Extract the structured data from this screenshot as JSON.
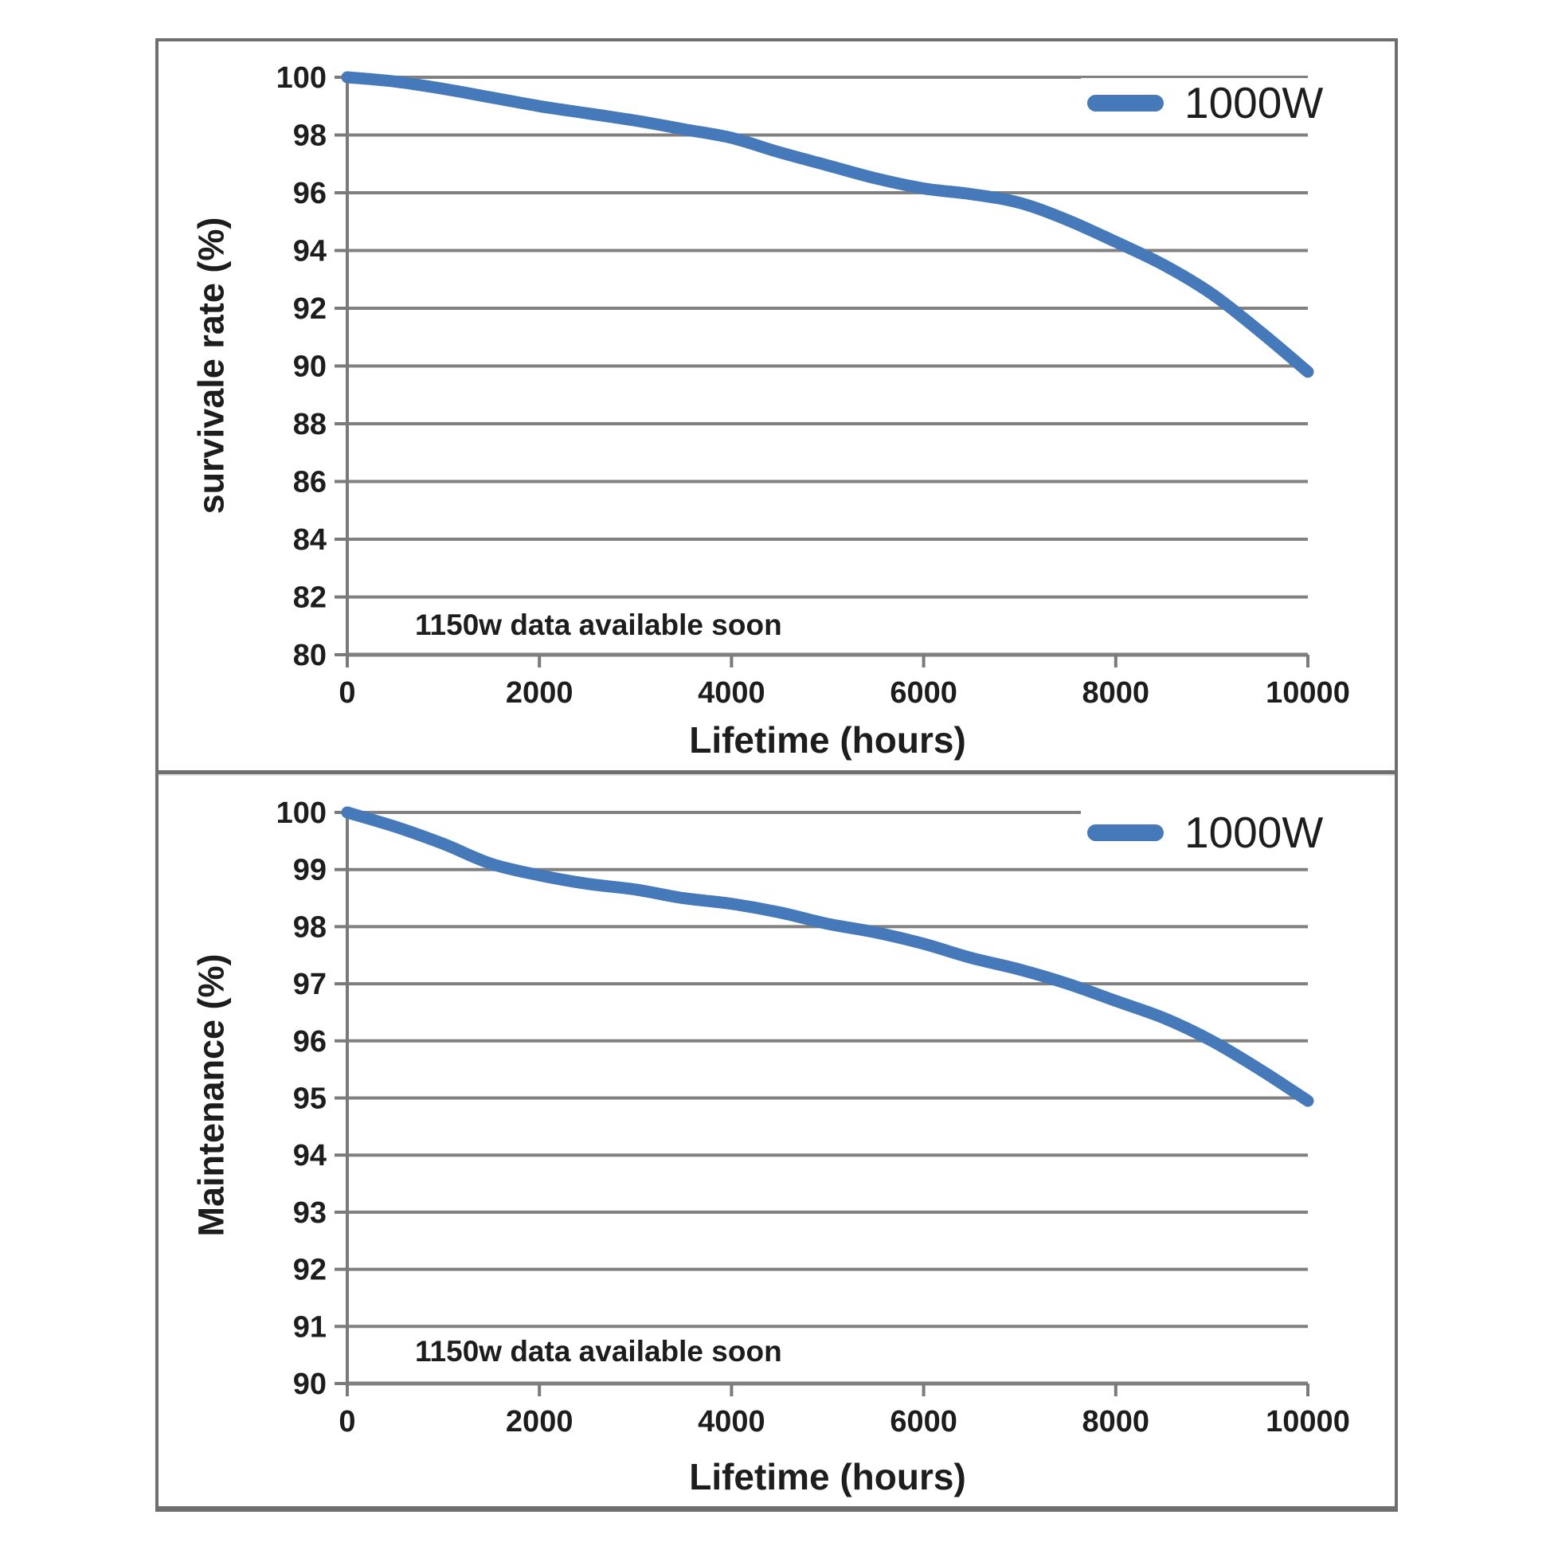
{
  "colors": {
    "line": "#4579b9",
    "grid": "#808080",
    "axis": "#7a7a7a",
    "border": "#6f6f6f",
    "text": "#1d1d1d"
  },
  "chart_data": [
    {
      "type": "line",
      "title": "",
      "ylabel": "survivale rate (%)",
      "xlabel": "Lifetime (hours)",
      "annotation": "1150w data available soon",
      "grid": true,
      "legend_position": "top-right",
      "xlim": [
        0,
        10000
      ],
      "ylim": [
        80,
        100
      ],
      "x_ticks": [
        0,
        2000,
        4000,
        6000,
        8000,
        10000
      ],
      "y_ticks": [
        80,
        82,
        84,
        86,
        88,
        90,
        92,
        94,
        96,
        98,
        100
      ],
      "series": [
        {
          "name": "1000W",
          "color": "#4579b9",
          "x": [
            0,
            500,
            1000,
            1500,
            2000,
            2500,
            3000,
            3500,
            4000,
            4500,
            5000,
            5500,
            6000,
            6500,
            7000,
            7500,
            8000,
            8500,
            9000,
            9500,
            10000
          ],
          "y": [
            100,
            99.85,
            99.6,
            99.3,
            99.0,
            98.75,
            98.5,
            98.2,
            97.9,
            97.4,
            96.95,
            96.5,
            96.15,
            95.95,
            95.65,
            95.05,
            94.3,
            93.5,
            92.5,
            91.2,
            89.8
          ]
        }
      ]
    },
    {
      "type": "line",
      "title": "",
      "ylabel": "Maintenance (%)",
      "xlabel": "Lifetime (hours)",
      "annotation": "1150w data available soon",
      "grid": true,
      "legend_position": "top-right",
      "xlim": [
        0,
        10000
      ],
      "ylim": [
        90,
        100
      ],
      "x_ticks": [
        0,
        2000,
        4000,
        6000,
        8000,
        10000
      ],
      "y_ticks": [
        90,
        91,
        92,
        93,
        94,
        95,
        96,
        97,
        98,
        99,
        100
      ],
      "series": [
        {
          "name": "1000W",
          "color": "#4579b9",
          "x": [
            0,
            500,
            1000,
            1500,
            2000,
            2500,
            3000,
            3500,
            4000,
            4500,
            5000,
            5500,
            6000,
            6500,
            7000,
            7500,
            8000,
            8500,
            9000,
            9500,
            10000
          ],
          "y": [
            100,
            99.75,
            99.45,
            99.1,
            98.9,
            98.75,
            98.65,
            98.5,
            98.4,
            98.25,
            98.05,
            97.9,
            97.7,
            97.45,
            97.25,
            97.0,
            96.7,
            96.4,
            96.0,
            95.5,
            94.95
          ]
        }
      ]
    }
  ]
}
